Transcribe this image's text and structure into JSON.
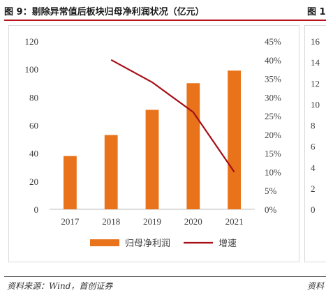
{
  "figure": {
    "title": "图 9：剔除异常值后板块归母净利润状况（亿元）",
    "source": "资料来源：Wind，首创证券",
    "next_title_fragment": "图 1",
    "next_source_fragment": "资料"
  },
  "right_panel": {
    "ticks": [
      "16",
      "14",
      "12",
      "10",
      "8",
      "6",
      "4",
      "2",
      "0"
    ]
  },
  "chart_data": {
    "type": "bar",
    "categories": [
      "2017",
      "2018",
      "2019",
      "2020",
      "2021"
    ],
    "series": [
      {
        "name": "归母净利润",
        "type": "bar",
        "axis": "left",
        "color": "#e8731a",
        "values": [
          38,
          53,
          71,
          90,
          99
        ]
      },
      {
        "name": "增速",
        "type": "line",
        "axis": "right",
        "color": "#a50f15",
        "values": [
          null,
          0.4,
          0.34,
          0.26,
          0.1
        ]
      }
    ],
    "y_left": {
      "min": 0,
      "max": 120,
      "ticks": [
        0,
        20,
        40,
        60,
        80,
        100,
        120
      ]
    },
    "y_right": {
      "min": 0,
      "max": 0.45,
      "ticks": [
        "0%",
        "5%",
        "10%",
        "15%",
        "20%",
        "25%",
        "30%",
        "35%",
        "40%",
        "45%"
      ]
    },
    "grid": false,
    "legend_position": "bottom"
  }
}
